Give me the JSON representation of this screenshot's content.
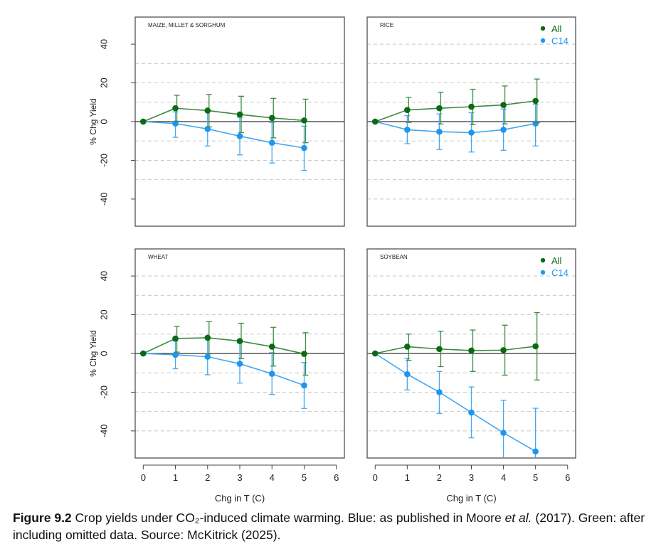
{
  "chart_data": [
    {
      "type": "line",
      "title": "MAIZE, MILLET & SORGHUM",
      "xlabel": "",
      "ylabel": "% Chg Yield",
      "x": [
        0,
        1,
        2,
        3,
        4,
        5
      ],
      "xlim": [
        -0.25,
        6.25
      ],
      "ylim": [
        -54,
        54
      ],
      "xticks": [
        0,
        1,
        2,
        3,
        4,
        5,
        6
      ],
      "yticks": [
        -40,
        -20,
        0,
        20,
        40
      ],
      "dashed_grid": [
        30,
        20,
        10,
        -10,
        -20,
        -30
      ],
      "legend": false,
      "series": [
        {
          "name": "All",
          "values": [
            0,
            6.9,
            5.7,
            3.7,
            1.9,
            0.6
          ],
          "lower": [
            0,
            0.2,
            -2.7,
            -5.7,
            -8.4,
            -10.9
          ],
          "upper": [
            0,
            13.6,
            14,
            13.1,
            12,
            11.6
          ]
        },
        {
          "name": "C14",
          "values": [
            0,
            -1,
            -3.8,
            -7.5,
            -10.9,
            -13.6
          ],
          "lower": [
            0,
            -8.1,
            -12.6,
            -17.2,
            -21.4,
            -25.2
          ],
          "upper": [
            0,
            5,
            5,
            2.2,
            -0.4,
            -2.3
          ]
        }
      ]
    },
    {
      "type": "line",
      "title": "RICE",
      "xlabel": "",
      "ylabel": "",
      "x": [
        0,
        1,
        2,
        3,
        4,
        5
      ],
      "xlim": [
        -0.25,
        6.25
      ],
      "ylim": [
        -54,
        54
      ],
      "xticks": [],
      "yticks": [],
      "dashed_grid": [
        40,
        30,
        20,
        10,
        -10,
        -20,
        -30,
        -40
      ],
      "legend": "top-right",
      "series": [
        {
          "name": "All",
          "values": [
            0,
            6,
            6.9,
            7.7,
            8.6,
            10.7
          ],
          "lower": [
            0,
            -0.4,
            -1.2,
            -1.6,
            -1.2,
            -0.6
          ],
          "upper": [
            0,
            12.5,
            15.2,
            16.7,
            18.4,
            22
          ]
        },
        {
          "name": "C14",
          "values": [
            0,
            -4.2,
            -5.2,
            -5.7,
            -4.2,
            -1
          ],
          "lower": [
            0,
            -11.4,
            -14.4,
            -15.7,
            -14.8,
            -12.6
          ],
          "upper": [
            0,
            3.1,
            4,
            4.6,
            6.5,
            9
          ]
        }
      ]
    },
    {
      "type": "line",
      "title": "WHEAT",
      "xlabel": "Chg in T (C)",
      "ylabel": "% Chg Yield",
      "x": [
        0,
        1,
        2,
        3,
        4,
        5
      ],
      "xlim": [
        -0.25,
        6.25
      ],
      "ylim": [
        -54,
        54
      ],
      "xticks": [
        0,
        1,
        2,
        3,
        4,
        5,
        6
      ],
      "yticks": [
        -40,
        -20,
        0,
        20,
        40
      ],
      "dashed_grid": [
        40,
        30,
        20,
        10,
        -10,
        -20,
        -30,
        -40
      ],
      "legend": false,
      "series": [
        {
          "name": "All",
          "values": [
            0,
            7.7,
            8.1,
            6.4,
            3.5,
            -0.2
          ],
          "lower": [
            0,
            0.7,
            -0.2,
            -2.7,
            -6.5,
            -11.2
          ],
          "upper": [
            0,
            14,
            16.4,
            15.6,
            13.5,
            10.7
          ]
        },
        {
          "name": "C14",
          "values": [
            0,
            -0.7,
            -1.7,
            -5.3,
            -10.5,
            -16.5
          ],
          "lower": [
            0,
            -7.9,
            -11,
            -15.3,
            -21.2,
            -28.4
          ],
          "upper": [
            0,
            6.5,
            7.6,
            5.6,
            0.4,
            -4.7
          ]
        }
      ]
    },
    {
      "type": "line",
      "title": "SOYBEAN",
      "xlabel": "Chg in T (C)",
      "ylabel": "",
      "x": [
        0,
        1,
        2,
        3,
        4,
        5
      ],
      "xlim": [
        -0.25,
        6.25
      ],
      "ylim": [
        -54,
        54
      ],
      "xticks": [
        0,
        1,
        2,
        3,
        4,
        5,
        6
      ],
      "yticks": [],
      "dashed_grid": [
        40,
        30,
        20,
        10,
        -10,
        -20,
        -30,
        -40
      ],
      "legend": "top-right",
      "series": [
        {
          "name": "All",
          "values": [
            0,
            3.5,
            2.3,
            1.5,
            1.7,
            3.7
          ],
          "lower": [
            0,
            -3.6,
            -6.8,
            -9.3,
            -11.2,
            -13.7
          ],
          "upper": [
            0,
            10,
            11.5,
            12.1,
            14.6,
            21.1
          ]
        },
        {
          "name": "C14",
          "values": [
            0,
            -10.7,
            -20,
            -30.5,
            -41,
            -50.6
          ],
          "lower": [
            0,
            -18.8,
            -31,
            -43.6,
            -60,
            -60
          ],
          "upper": [
            0,
            -2.5,
            -9.3,
            -17.3,
            -24.2,
            -28.3
          ]
        }
      ]
    }
  ],
  "colors": {
    "All": "#0b6b12",
    "All_line": "#3d8a45",
    "C14": "#1e96f0",
    "C14_line": "#45a8f2"
  },
  "caption": {
    "label": "Figure 9.2",
    "text1": " Crop yields under CO₂-induced climate warming. Blue: as published in Moore ",
    "italic": "et al.",
    "text2": " (2017). Green: after including omitted data. Source: McKitrick (2025)."
  }
}
